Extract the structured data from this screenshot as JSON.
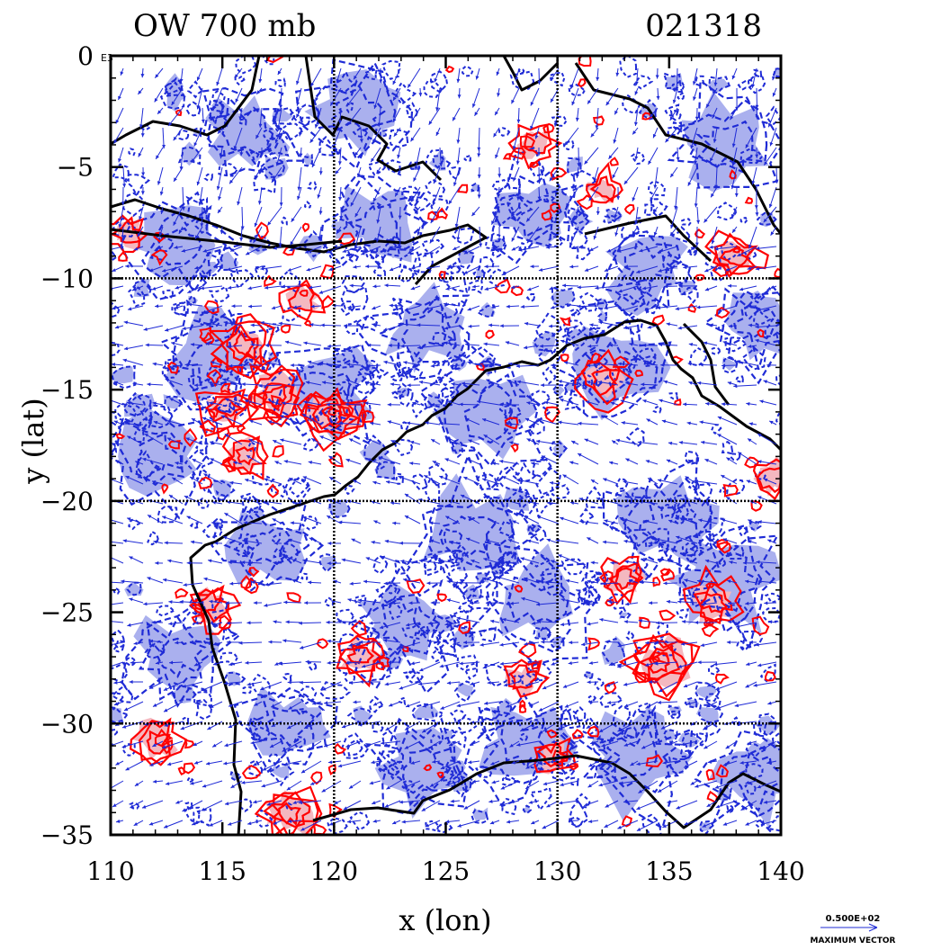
{
  "chart_data": {
    "type": "contour",
    "title_left": "OW 700 mb",
    "title_right": "021318",
    "xlabel": "x (lon)",
    "ylabel": "y (lat)",
    "x_ticks": [
      110,
      115,
      120,
      125,
      130,
      135,
      140
    ],
    "y_ticks": [
      0,
      -5,
      -10,
      -15,
      -20,
      -25,
      -30,
      -35
    ],
    "xlim": [
      110,
      140
    ],
    "ylim": [
      -35,
      0
    ],
    "y_tick_suffix_at_0": "E3",
    "grid_lines_x": [
      120,
      130
    ],
    "grid_lines_y": [
      -10,
      -20,
      -30
    ],
    "colors": {
      "positive_contour": "#ff0000",
      "positive_fill": "#f4b8c0",
      "negative_contour": "#1f2bd6",
      "negative_fill": "#aab0ee",
      "coastline": "#000000",
      "vector": "#1f2bd6"
    },
    "legend": {
      "vector_value": "0.500E+02",
      "vector_caption": "MAXIMUM VECTOR"
    },
    "positive_features": [
      {
        "lon": 119.9,
        "lat": -16.2,
        "size": 0.9
      },
      {
        "lon": 117.4,
        "lat": -15.3,
        "size": 0.8
      },
      {
        "lon": 115.2,
        "lat": -15.8,
        "size": 0.6
      },
      {
        "lon": 116.0,
        "lat": -13.0,
        "size": 0.7
      },
      {
        "lon": 116.0,
        "lat": -18.0,
        "size": 0.5
      },
      {
        "lon": 118.6,
        "lat": -11.0,
        "size": 0.4
      },
      {
        "lon": 114.5,
        "lat": -24.6,
        "size": 0.5
      },
      {
        "lon": 112.0,
        "lat": -30.7,
        "size": 0.6
      },
      {
        "lon": 118.0,
        "lat": -34.0,
        "size": 0.8
      },
      {
        "lon": 121.2,
        "lat": -27.0,
        "size": 0.5
      },
      {
        "lon": 134.6,
        "lat": -27.3,
        "size": 1.0
      },
      {
        "lon": 137.0,
        "lat": -24.5,
        "size": 0.6
      },
      {
        "lon": 132.0,
        "lat": -14.5,
        "size": 0.6
      },
      {
        "lon": 138.0,
        "lat": -9.0,
        "size": 0.6
      },
      {
        "lon": 139.6,
        "lat": -19.0,
        "size": 0.4
      },
      {
        "lon": 129.0,
        "lat": -4.0,
        "size": 0.4
      },
      {
        "lon": 132.0,
        "lat": -6.0,
        "size": 0.3
      },
      {
        "lon": 110.8,
        "lat": -8.0,
        "size": 0.4
      },
      {
        "lon": 128.5,
        "lat": -28.0,
        "size": 0.4
      },
      {
        "lon": 133.0,
        "lat": -23.5,
        "size": 0.5
      },
      {
        "lon": 129.8,
        "lat": -31.5,
        "size": 0.4
      }
    ],
    "negative_features": [
      {
        "lon": 119.5,
        "lat": -15.0,
        "size": 1.0
      },
      {
        "lon": 114.5,
        "lat": -13.5,
        "size": 0.9
      },
      {
        "lon": 127.0,
        "lat": -16.0,
        "size": 1.0
      },
      {
        "lon": 132.5,
        "lat": -14.0,
        "size": 0.9
      },
      {
        "lon": 137.5,
        "lat": -4.0,
        "size": 1.0
      },
      {
        "lon": 122.0,
        "lat": -7.5,
        "size": 0.8
      },
      {
        "lon": 113.0,
        "lat": -8.5,
        "size": 0.8
      },
      {
        "lon": 121.0,
        "lat": -2.5,
        "size": 0.8
      },
      {
        "lon": 135.0,
        "lat": -21.0,
        "size": 1.0
      },
      {
        "lon": 129.0,
        "lat": -24.5,
        "size": 1.0
      },
      {
        "lon": 137.5,
        "lat": -23.5,
        "size": 1.0
      },
      {
        "lon": 113.0,
        "lat": -27.0,
        "size": 0.8
      },
      {
        "lon": 126.0,
        "lat": -21.5,
        "size": 0.9
      },
      {
        "lon": 123.0,
        "lat": -25.5,
        "size": 0.8
      },
      {
        "lon": 133.5,
        "lat": -31.5,
        "size": 0.9
      },
      {
        "lon": 128.5,
        "lat": -31.0,
        "size": 0.8
      },
      {
        "lon": 124.0,
        "lat": -32.0,
        "size": 0.7
      },
      {
        "lon": 139.0,
        "lat": -32.5,
        "size": 0.8
      },
      {
        "lon": 117.0,
        "lat": -22.0,
        "size": 0.6
      },
      {
        "lon": 112.0,
        "lat": -18.0,
        "size": 0.7
      },
      {
        "lon": 129.0,
        "lat": -7.0,
        "size": 0.7
      },
      {
        "lon": 116.0,
        "lat": -3.5,
        "size": 0.7
      },
      {
        "lon": 124.0,
        "lat": -12.5,
        "size": 0.7
      },
      {
        "lon": 139.0,
        "lat": -12.0,
        "size": 0.6
      },
      {
        "lon": 134.0,
        "lat": -9.5,
        "size": 0.6
      },
      {
        "lon": 118.0,
        "lat": -30.0,
        "size": 0.6
      }
    ]
  }
}
